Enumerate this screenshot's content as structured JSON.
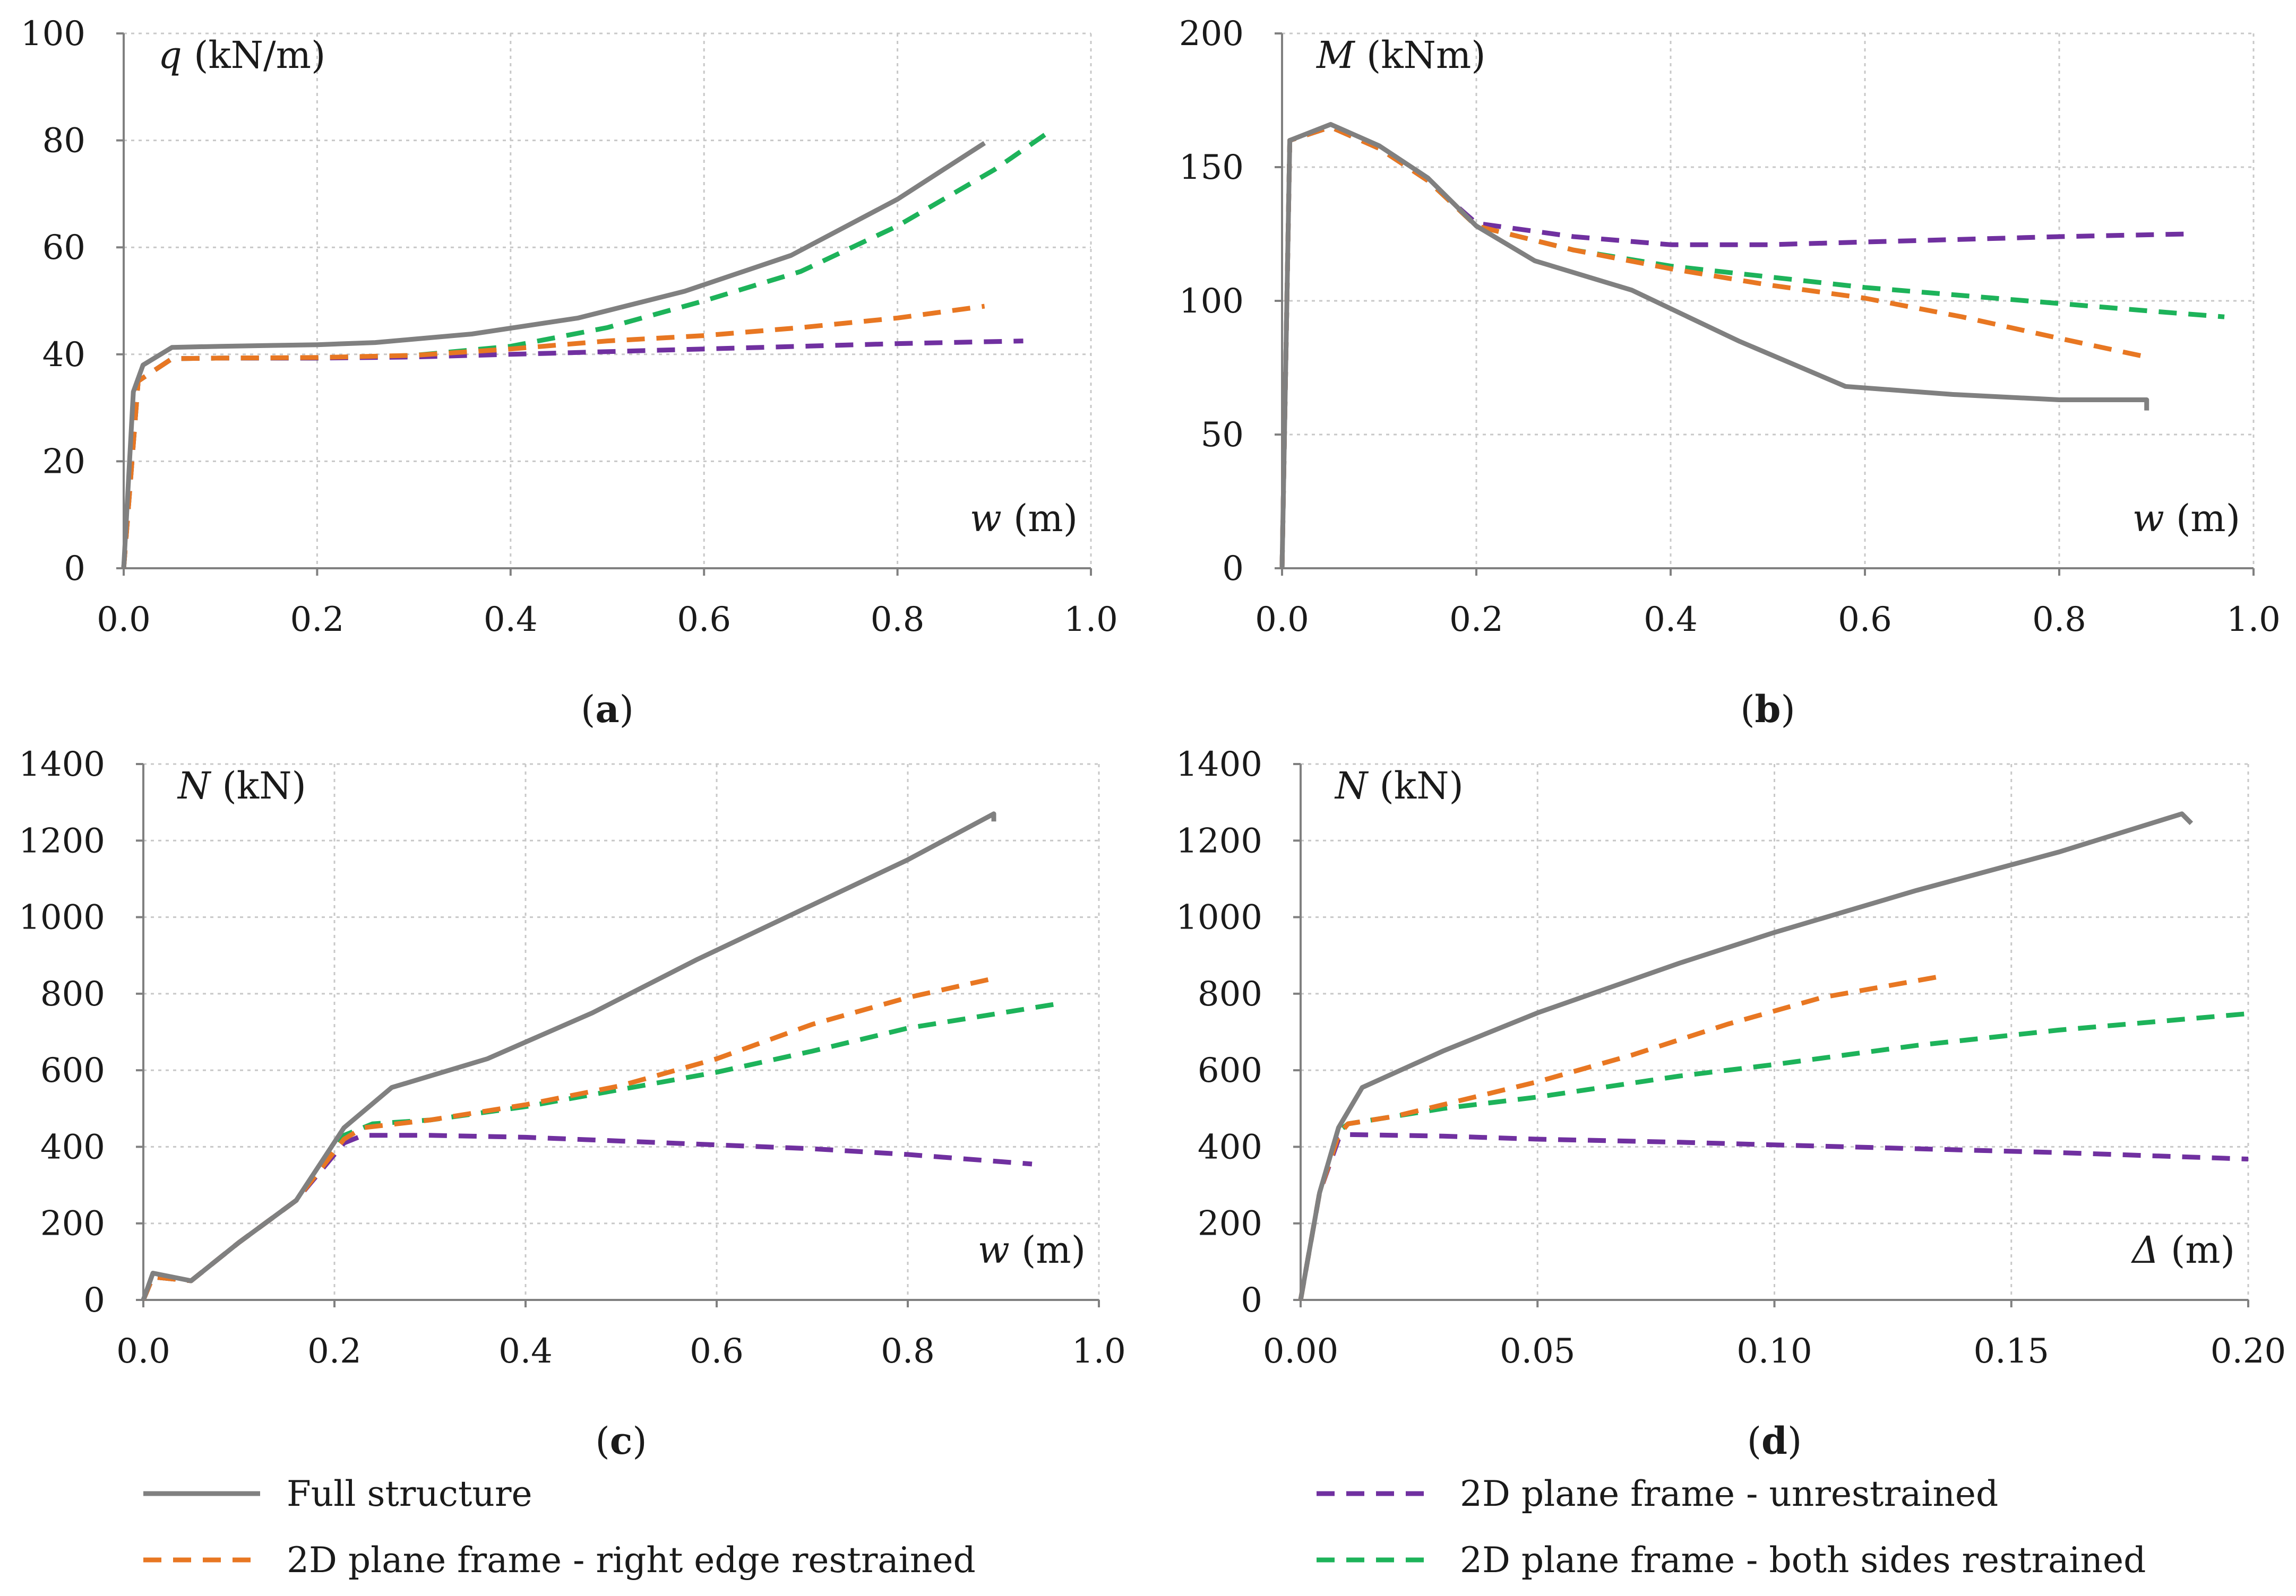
{
  "series_styles": [
    {
      "key": "full",
      "color": "#808080",
      "dash": false
    },
    {
      "key": "right",
      "color": "#E87722",
      "dash": true
    },
    {
      "key": "unres",
      "color": "#7030A0",
      "dash": true
    },
    {
      "key": "both",
      "color": "#1DB35A",
      "dash": true
    }
  ],
  "legend": {
    "full": "Full structure",
    "unres": "2D plane frame - unrestrained",
    "right": "2D plane frame - right edge restrained",
    "both": "2D plane frame - both sides restrained"
  },
  "chart_data": [
    {
      "type": "line",
      "panel_label": "(a)",
      "panel_letter": "a",
      "ylabel_sym": "q",
      "ylabel_unit": " (kN/m)",
      "xlabel_sym": "w",
      "xlabel_unit": " (m)",
      "xlim": [
        0,
        1.0
      ],
      "ylim": [
        0,
        100
      ],
      "xticks": [
        0,
        0.2,
        0.4,
        0.6,
        0.8,
        1.0
      ],
      "xtick_labels": [
        "0.0",
        "0.2",
        "0.4",
        "0.6",
        "0.8",
        "1.0"
      ],
      "yticks": [
        0,
        20,
        40,
        60,
        80,
        100
      ],
      "ytick_labels": [
        "0",
        "20",
        "40",
        "60",
        "80",
        "100"
      ],
      "grid": true,
      "series": [
        {
          "key": "full",
          "x": [
            0,
            0.01,
            0.02,
            0.05,
            0.1,
            0.2,
            0.26,
            0.36,
            0.47,
            0.58,
            0.69,
            0.8,
            0.89
          ],
          "y": [
            0,
            33,
            38,
            41.3,
            41.5,
            41.8,
            42.2,
            43.8,
            46.8,
            51.8,
            58.5,
            69,
            79.5
          ]
        },
        {
          "key": "right",
          "x": [
            0,
            0.015,
            0.05,
            0.1,
            0.2,
            0.3,
            0.4,
            0.5,
            0.6,
            0.7,
            0.8,
            0.89
          ],
          "y": [
            0,
            35,
            39.2,
            39.3,
            39.4,
            39.8,
            41,
            42.5,
            43.5,
            45,
            46.8,
            49
          ]
        },
        {
          "key": "unres",
          "x": [
            0,
            0.015,
            0.05,
            0.1,
            0.2,
            0.3,
            0.4,
            0.5,
            0.6,
            0.7,
            0.8,
            0.93
          ],
          "y": [
            0,
            35,
            39.2,
            39.3,
            39.3,
            39.5,
            40,
            40.5,
            41,
            41.5,
            42,
            42.5
          ]
        },
        {
          "key": "both",
          "x": [
            0,
            0.015,
            0.05,
            0.1,
            0.2,
            0.3,
            0.4,
            0.5,
            0.6,
            0.7,
            0.8,
            0.9,
            0.96
          ],
          "y": [
            0,
            35,
            39.2,
            39.3,
            39.3,
            39.8,
            41.5,
            45,
            50,
            55.5,
            64,
            74.5,
            82
          ]
        }
      ]
    },
    {
      "type": "line",
      "panel_label": "(b)",
      "panel_letter": "b",
      "ylabel_sym": "M",
      "ylabel_unit": " (kNm)",
      "xlabel_sym": "w",
      "xlabel_unit": " (m)",
      "xlim": [
        0,
        1.0
      ],
      "ylim": [
        0,
        200
      ],
      "xticks": [
        0,
        0.2,
        0.4,
        0.6,
        0.8,
        1.0
      ],
      "xtick_labels": [
        "0.0",
        "0.2",
        "0.4",
        "0.6",
        "0.8",
        "1.0"
      ],
      "yticks": [
        0,
        50,
        100,
        150,
        200
      ],
      "ytick_labels": [
        "0",
        "50",
        "100",
        "150",
        "200"
      ],
      "grid": true,
      "series": [
        {
          "key": "full",
          "x": [
            0,
            0.008,
            0.05,
            0.1,
            0.15,
            0.2,
            0.26,
            0.36,
            0.47,
            0.58,
            0.69,
            0.8,
            0.89,
            0.89
          ],
          "y": [
            0,
            160,
            166,
            158,
            146,
            128,
            115,
            104,
            85,
            68,
            65,
            63,
            63,
            59
          ]
        },
        {
          "key": "right",
          "x": [
            0,
            0.008,
            0.05,
            0.1,
            0.15,
            0.2,
            0.3,
            0.4,
            0.5,
            0.6,
            0.7,
            0.8,
            0.89
          ],
          "y": [
            0,
            160,
            165,
            157,
            145,
            128,
            119,
            112,
            106,
            101,
            94,
            86,
            79
          ]
        },
        {
          "key": "unres",
          "x": [
            0,
            0.008,
            0.05,
            0.1,
            0.15,
            0.2,
            0.3,
            0.4,
            0.5,
            0.6,
            0.7,
            0.8,
            0.93
          ],
          "y": [
            0,
            160,
            165,
            157,
            145,
            129,
            124,
            121,
            121,
            122,
            123,
            124,
            125
          ]
        },
        {
          "key": "both",
          "x": [
            0,
            0.008,
            0.05,
            0.1,
            0.15,
            0.2,
            0.3,
            0.4,
            0.5,
            0.6,
            0.7,
            0.8,
            0.9,
            0.97
          ],
          "y": [
            0,
            160,
            165,
            157,
            145,
            128,
            119,
            113,
            109,
            105,
            102,
            99,
            96,
            94
          ]
        }
      ]
    },
    {
      "type": "line",
      "panel_label": "(c)",
      "panel_letter": "c",
      "ylabel_sym": "N",
      "ylabel_unit": " (kN)",
      "xlabel_sym": "w",
      "xlabel_unit": " (m)",
      "xlim": [
        0,
        1.0
      ],
      "ylim": [
        0,
        1400
      ],
      "xticks": [
        0,
        0.2,
        0.4,
        0.6,
        0.8,
        1.0
      ],
      "xtick_labels": [
        "0.0",
        "0.2",
        "0.4",
        "0.6",
        "0.8",
        "1.0"
      ],
      "yticks": [
        0,
        200,
        400,
        600,
        800,
        1000,
        1200,
        1400
      ],
      "ytick_labels": [
        "0",
        "200",
        "400",
        "600",
        "800",
        "1000",
        "1200",
        "1400"
      ],
      "grid": true,
      "series": [
        {
          "key": "full",
          "x": [
            0,
            0.01,
            0.05,
            0.1,
            0.16,
            0.21,
            0.26,
            0.36,
            0.47,
            0.58,
            0.69,
            0.8,
            0.89,
            0.89
          ],
          "y": [
            0,
            70,
            50,
            150,
            260,
            450,
            555,
            630,
            750,
            890,
            1020,
            1150,
            1270,
            1250
          ]
        },
        {
          "key": "right",
          "x": [
            0,
            0.01,
            0.05,
            0.1,
            0.16,
            0.21,
            0.23,
            0.3,
            0.4,
            0.5,
            0.6,
            0.7,
            0.8,
            0.89
          ],
          "y": [
            0,
            60,
            50,
            150,
            260,
            420,
            450,
            470,
            510,
            560,
            630,
            720,
            790,
            840
          ]
        },
        {
          "key": "unres",
          "x": [
            0,
            0.01,
            0.05,
            0.1,
            0.16,
            0.21,
            0.23,
            0.3,
            0.4,
            0.5,
            0.6,
            0.7,
            0.8,
            0.93
          ],
          "y": [
            0,
            60,
            50,
            150,
            260,
            410,
            430,
            430,
            425,
            415,
            405,
            395,
            380,
            355
          ]
        },
        {
          "key": "both",
          "x": [
            0,
            0.01,
            0.05,
            0.1,
            0.16,
            0.21,
            0.24,
            0.3,
            0.4,
            0.5,
            0.6,
            0.7,
            0.8,
            0.96
          ],
          "y": [
            0,
            60,
            50,
            150,
            260,
            430,
            460,
            470,
            505,
            550,
            595,
            650,
            710,
            775
          ]
        }
      ]
    },
    {
      "type": "line",
      "panel_label": "(d)",
      "panel_letter": "d",
      "ylabel_sym": "N",
      "ylabel_unit": " (kN)",
      "xlabel_sym": "Δ",
      "xlabel_unit": " (m)",
      "xlim": [
        0,
        0.2
      ],
      "ylim": [
        0,
        1400
      ],
      "xticks": [
        0,
        0.05,
        0.1,
        0.15,
        0.2
      ],
      "xtick_labels": [
        "0.00",
        "0.05",
        "0.10",
        "0.15",
        "0.20"
      ],
      "yticks": [
        0,
        200,
        400,
        600,
        800,
        1000,
        1200,
        1400
      ],
      "ytick_labels": [
        "0",
        "200",
        "400",
        "600",
        "800",
        "1000",
        "1200",
        "1400"
      ],
      "grid": true,
      "series": [
        {
          "key": "full",
          "x": [
            0,
            0.004,
            0.008,
            0.013,
            0.03,
            0.05,
            0.08,
            0.1,
            0.13,
            0.16,
            0.186,
            0.188
          ],
          "y": [
            0,
            280,
            450,
            555,
            650,
            750,
            880,
            960,
            1070,
            1170,
            1270,
            1245
          ]
        },
        {
          "key": "right",
          "x": [
            0,
            0.004,
            0.008,
            0.01,
            0.02,
            0.03,
            0.05,
            0.07,
            0.09,
            0.11,
            0.135
          ],
          "y": [
            0,
            280,
            430,
            460,
            480,
            510,
            570,
            640,
            720,
            790,
            845
          ]
        },
        {
          "key": "unres",
          "x": [
            0,
            0.004,
            0.008,
            0.01,
            0.03,
            0.05,
            0.08,
            0.1,
            0.13,
            0.16,
            0.2
          ],
          "y": [
            0,
            280,
            420,
            432,
            428,
            420,
            412,
            405,
            395,
            385,
            368
          ]
        },
        {
          "key": "both",
          "x": [
            0,
            0.004,
            0.008,
            0.01,
            0.03,
            0.05,
            0.08,
            0.1,
            0.13,
            0.16,
            0.2
          ],
          "y": [
            0,
            280,
            440,
            460,
            500,
            530,
            585,
            615,
            665,
            705,
            748
          ]
        }
      ]
    }
  ]
}
